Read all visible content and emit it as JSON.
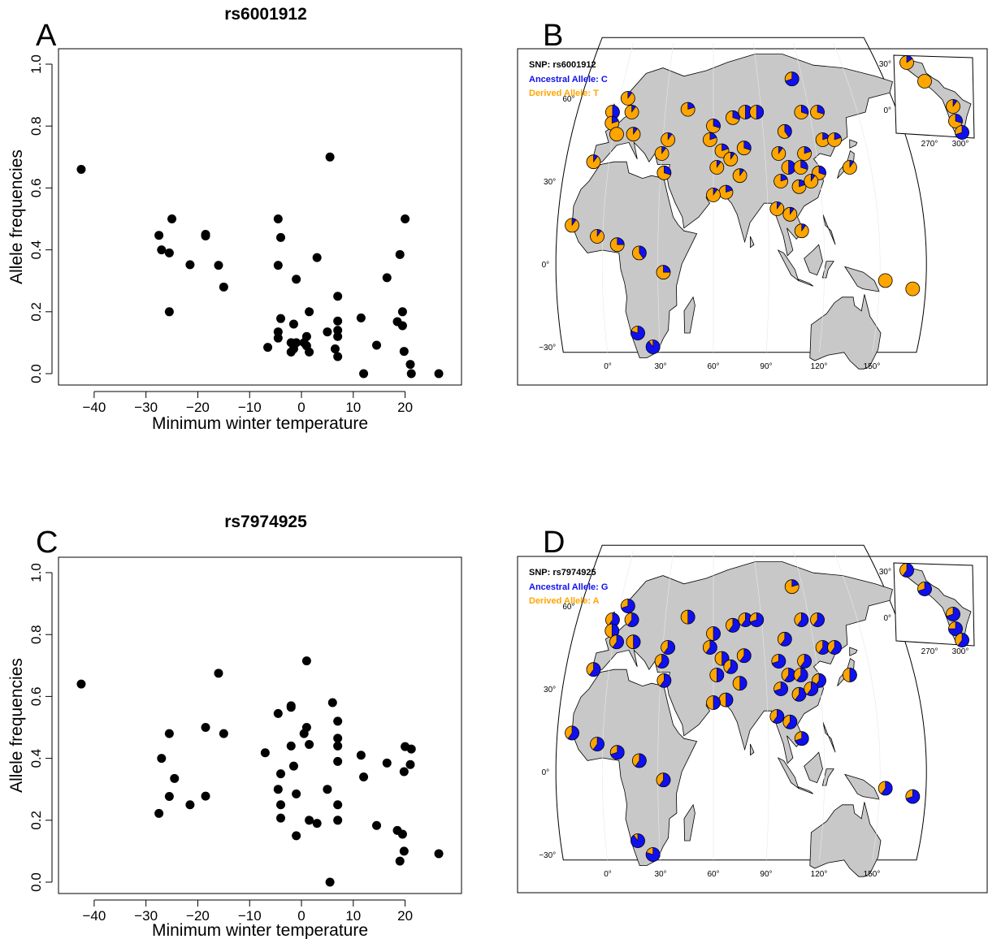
{
  "colors": {
    "ancestral": "#1010ee",
    "derived": "#ffa500",
    "land": "#c8c8c8",
    "points": "#000000"
  },
  "panels": {
    "A": {
      "letter": "A",
      "title": "rs6001912"
    },
    "B": {
      "letter": "B",
      "snp_label": "SNP: rs6001912",
      "ancestral_label": "Ancestral Allele: C",
      "derived_label": "Derived Allele: T"
    },
    "C": {
      "letter": "C",
      "title": "rs7974925"
    },
    "D": {
      "letter": "D",
      "snp_label": "SNP: rs7974925",
      "ancestral_label": "Ancestral Allele: G",
      "derived_label": "Derived Allele: A"
    }
  },
  "map_ticks": {
    "lon": [
      "0°",
      "30°",
      "60°",
      "90°",
      "120°",
      "150°"
    ],
    "lat": [
      "60°",
      "30°",
      "0°",
      "−30°"
    ],
    "inset_lon": [
      "270°",
      "300°"
    ],
    "inset_lat": [
      "30°",
      "0°"
    ]
  },
  "chart_data": [
    {
      "type": "scatter",
      "title": "rs6001912",
      "xlabel": "Minimum winter temperature",
      "ylabel": "Allele frequencies",
      "xlim": [
        -45,
        29
      ],
      "ylim": [
        0,
        1
      ],
      "xticks": [
        -40,
        -30,
        -20,
        -10,
        0,
        10,
        20
      ],
      "xtick_labels": [
        "−40",
        "−30",
        "−20",
        "−10",
        "0",
        "10",
        "20"
      ],
      "yticks": [
        0.0,
        0.2,
        0.4,
        0.6,
        0.8,
        1.0
      ],
      "ytick_labels": [
        "0.0",
        "0.2",
        "0.4",
        "0.6",
        "0.8",
        "1.0"
      ],
      "points": [
        [
          -42.5,
          0.66
        ],
        [
          -27.5,
          0.447
        ],
        [
          -27,
          0.4
        ],
        [
          -25.5,
          0.39
        ],
        [
          -25,
          0.5
        ],
        [
          -25.5,
          0.2
        ],
        [
          -21.5,
          0.352
        ],
        [
          -18.5,
          0.45
        ],
        [
          -18.5,
          0.445
        ],
        [
          -16,
          0.35
        ],
        [
          -15,
          0.28
        ],
        [
          -6.5,
          0.085
        ],
        [
          -4.5,
          0.5
        ],
        [
          -4.5,
          0.35
        ],
        [
          -4,
          0.44
        ],
        [
          -4,
          0.178
        ],
        [
          -4.5,
          0.135
        ],
        [
          -4.5,
          0.115
        ],
        [
          -2,
          0.1
        ],
        [
          -2,
          0.07
        ],
        [
          -1.5,
          0.16
        ],
        [
          -1,
          0.305
        ],
        [
          -1.5,
          0.08
        ],
        [
          -1,
          0.1
        ],
        [
          0.5,
          0.1
        ],
        [
          1,
          0.12
        ],
        [
          1,
          0.09
        ],
        [
          1.5,
          0.07
        ],
        [
          1.5,
          0.2
        ],
        [
          3,
          0.375
        ],
        [
          5,
          0.135
        ],
        [
          5.5,
          0.7
        ],
        [
          6.5,
          0.08
        ],
        [
          7,
          0.17
        ],
        [
          7,
          0.25
        ],
        [
          7,
          0.14
        ],
        [
          7,
          0.12
        ],
        [
          7,
          0.055
        ],
        [
          11.5,
          0.18
        ],
        [
          12,
          0.0
        ],
        [
          14.5,
          0.092
        ],
        [
          16.5,
          0.31
        ],
        [
          18.5,
          0.168
        ],
        [
          19,
          0.385
        ],
        [
          19.5,
          0.155
        ],
        [
          19.5,
          0.2
        ],
        [
          20,
          0.5
        ],
        [
          19.8,
          0.072
        ],
        [
          21,
          0.03
        ],
        [
          21.2,
          0.0
        ],
        [
          26.5,
          0.0
        ]
      ]
    },
    {
      "type": "scatter",
      "title": "rs7974925",
      "xlabel": "Minimum winter temperature",
      "ylabel": "Allele frequencies",
      "xlim": [
        -45,
        29
      ],
      "ylim": [
        0,
        1
      ],
      "xticks": [
        -40,
        -30,
        -20,
        -10,
        0,
        10,
        20
      ],
      "xtick_labels": [
        "−40",
        "−30",
        "−20",
        "−10",
        "0",
        "10",
        "20"
      ],
      "yticks": [
        0.0,
        0.2,
        0.4,
        0.6,
        0.8,
        1.0
      ],
      "ytick_labels": [
        "0.0",
        "0.2",
        "0.4",
        "0.6",
        "0.8",
        "1.0"
      ],
      "points": [
        [
          -42.5,
          0.64
        ],
        [
          -27,
          0.4
        ],
        [
          -27.5,
          0.222
        ],
        [
          -25.5,
          0.48
        ],
        [
          -25.5,
          0.277
        ],
        [
          -24.5,
          0.335
        ],
        [
          -21.5,
          0.25
        ],
        [
          -18.5,
          0.5
        ],
        [
          -18.5,
          0.278
        ],
        [
          -16,
          0.675
        ],
        [
          -15,
          0.48
        ],
        [
          -7,
          0.418
        ],
        [
          -4.5,
          0.545
        ],
        [
          -4.5,
          0.3
        ],
        [
          -4,
          0.35
        ],
        [
          -4,
          0.25
        ],
        [
          -4,
          0.207
        ],
        [
          -2,
          0.565
        ],
        [
          -2,
          0.57
        ],
        [
          -2,
          0.44
        ],
        [
          -1.5,
          0.375
        ],
        [
          -1,
          0.285
        ],
        [
          -1,
          0.15
        ],
        [
          0.5,
          0.48
        ],
        [
          1,
          0.5
        ],
        [
          1,
          0.715
        ],
        [
          1.5,
          0.445
        ],
        [
          1.5,
          0.2
        ],
        [
          3,
          0.19
        ],
        [
          5,
          0.3
        ],
        [
          5.5,
          0.0
        ],
        [
          6,
          0.58
        ],
        [
          7,
          0.52
        ],
        [
          7,
          0.465
        ],
        [
          7,
          0.44
        ],
        [
          7,
          0.39
        ],
        [
          7,
          0.25
        ],
        [
          7,
          0.2
        ],
        [
          11.5,
          0.41
        ],
        [
          12,
          0.34
        ],
        [
          14.5,
          0.183
        ],
        [
          16.5,
          0.385
        ],
        [
          18.5,
          0.167
        ],
        [
          19,
          0.068
        ],
        [
          19.5,
          0.155
        ],
        [
          19.8,
          0.1
        ],
        [
          20,
          0.438
        ],
        [
          19.8,
          0.357
        ],
        [
          21,
          0.38
        ],
        [
          21.2,
          0.43
        ],
        [
          26.5,
          0.092
        ]
      ]
    },
    {
      "type": "pie",
      "title": "SNP: rs6001912",
      "series": [
        {
          "name": "Ancestral Allele: C"
        },
        {
          "name": "Derived Allele: T"
        }
      ],
      "pies": [
        [
          -17,
          14,
          0.1
        ],
        [
          -3,
          10,
          0.1
        ],
        [
          8,
          7,
          0.25
        ],
        [
          20,
          4,
          0.4
        ],
        [
          33,
          -3,
          0.25
        ],
        [
          18,
          -25,
          0.8
        ],
        [
          26,
          -30,
          0.9
        ],
        [
          32,
          33,
          0.3
        ],
        [
          -9,
          37,
          0.1
        ],
        [
          -3,
          55,
          0.5
        ],
        [
          5,
          60,
          0.1
        ],
        [
          -2,
          51,
          0.2
        ],
        [
          9,
          55,
          0.1
        ],
        [
          2,
          47,
          0.0
        ],
        [
          12,
          47,
          0.1
        ],
        [
          30,
          40,
          0.1
        ],
        [
          33,
          45,
          0.1
        ],
        [
          44,
          56,
          0.2
        ],
        [
          60,
          50,
          0.3
        ],
        [
          72,
          53,
          0.3
        ],
        [
          80,
          55,
          0.5
        ],
        [
          87,
          55,
          0.5
        ],
        [
          58,
          45,
          0.2
        ],
        [
          65,
          41,
          0.2
        ],
        [
          62,
          35,
          0.1
        ],
        [
          70,
          38,
          0.1
        ],
        [
          78,
          42,
          0.3
        ],
        [
          75,
          32,
          0.1
        ],
        [
          67,
          26,
          0.2
        ],
        [
          60,
          25,
          0.1
        ],
        [
          103,
          48,
          0.4
        ],
        [
          115,
          55,
          0.3
        ],
        [
          113,
          67,
          0.7
        ],
        [
          125,
          55,
          0.3
        ],
        [
          125,
          45,
          0.2
        ],
        [
          132,
          45,
          0.2
        ],
        [
          98,
          40,
          0.1
        ],
        [
          103,
          35,
          0.5
        ],
        [
          110,
          35,
          0.3
        ],
        [
          113,
          40,
          0.2
        ],
        [
          120,
          33,
          0.3
        ],
        [
          98,
          30,
          0.2
        ],
        [
          108,
          28,
          0.2
        ],
        [
          115,
          30,
          0.1
        ],
        [
          95,
          20,
          0.1
        ],
        [
          102,
          18,
          0.1
        ],
        [
          108,
          12,
          0.1
        ],
        [
          138,
          35,
          0.1
        ],
        [
          153,
          -6,
          0.0
        ],
        [
          168,
          -9,
          0.0
        ]
      ]
    },
    {
      "type": "pie",
      "title": "SNP: rs7974925",
      "series": [
        {
          "name": "Ancestral Allele: G"
        },
        {
          "name": "Derived Allele: A"
        }
      ],
      "pies": [
        [
          -17,
          14,
          0.6
        ],
        [
          -3,
          10,
          0.6
        ],
        [
          8,
          7,
          0.7
        ],
        [
          20,
          4,
          0.6
        ],
        [
          33,
          -3,
          0.6
        ],
        [
          18,
          -25,
          0.9
        ],
        [
          26,
          -30,
          0.8
        ],
        [
          32,
          33,
          0.6
        ],
        [
          -9,
          37,
          0.6
        ],
        [
          -3,
          55,
          0.6
        ],
        [
          5,
          60,
          0.7
        ],
        [
          -2,
          51,
          0.5
        ],
        [
          9,
          55,
          0.6
        ],
        [
          2,
          47,
          0.6
        ],
        [
          12,
          47,
          0.5
        ],
        [
          30,
          40,
          0.6
        ],
        [
          33,
          45,
          0.6
        ],
        [
          44,
          56,
          0.5
        ],
        [
          60,
          50,
          0.5
        ],
        [
          72,
          53,
          0.6
        ],
        [
          80,
          55,
          0.6
        ],
        [
          87,
          55,
          0.7
        ],
        [
          58,
          45,
          0.6
        ],
        [
          65,
          41,
          0.5
        ],
        [
          62,
          35,
          0.5
        ],
        [
          70,
          38,
          0.6
        ],
        [
          78,
          42,
          0.6
        ],
        [
          75,
          32,
          0.5
        ],
        [
          67,
          26,
          0.5
        ],
        [
          60,
          25,
          0.5
        ],
        [
          103,
          48,
          0.6
        ],
        [
          115,
          55,
          0.6
        ],
        [
          113,
          67,
          0.2
        ],
        [
          125,
          55,
          0.6
        ],
        [
          125,
          45,
          0.6
        ],
        [
          132,
          45,
          0.6
        ],
        [
          98,
          40,
          0.7
        ],
        [
          103,
          35,
          0.6
        ],
        [
          110,
          35,
          0.6
        ],
        [
          113,
          40,
          0.6
        ],
        [
          120,
          33,
          0.6
        ],
        [
          98,
          30,
          0.7
        ],
        [
          108,
          28,
          0.6
        ],
        [
          115,
          30,
          0.6
        ],
        [
          95,
          20,
          0.6
        ],
        [
          102,
          18,
          0.6
        ],
        [
          108,
          12,
          0.7
        ],
        [
          138,
          35,
          0.5
        ],
        [
          153,
          -6,
          0.6
        ],
        [
          168,
          -9,
          0.7
        ]
      ]
    }
  ]
}
